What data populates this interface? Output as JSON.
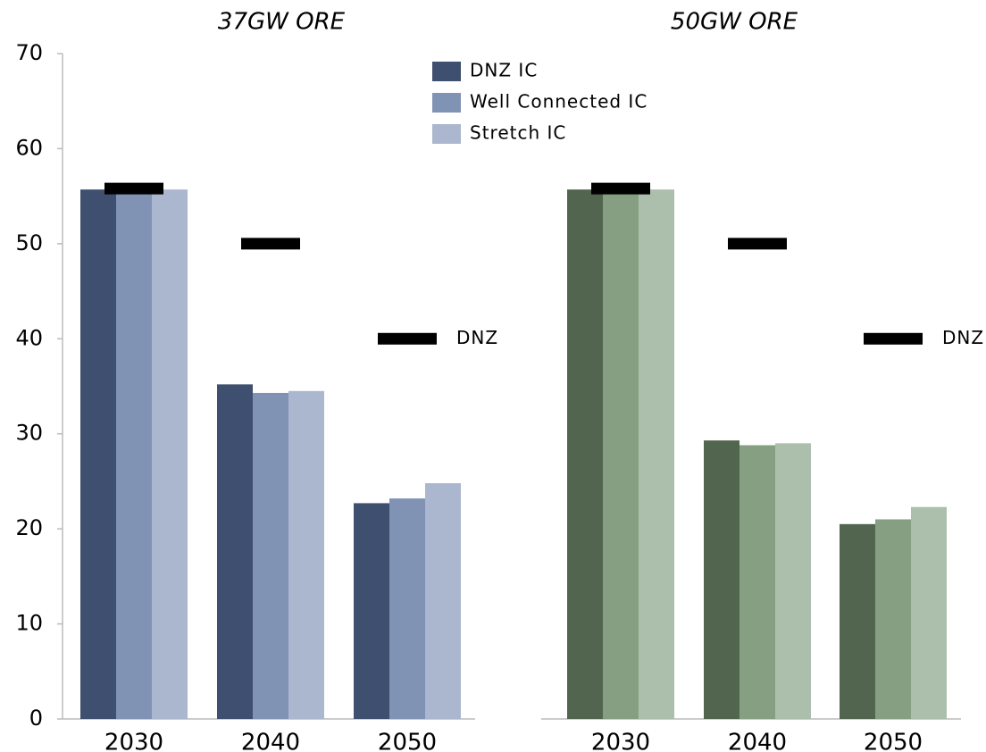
{
  "chart_data": [
    {
      "type": "bar",
      "title": "37GW ORE",
      "categories": [
        "2030",
        "2040",
        "2050"
      ],
      "series": [
        {
          "name": "DNZ IC",
          "color": "#3f4f6f",
          "values": [
            55.7,
            35.2,
            22.7
          ]
        },
        {
          "name": "Well Connected IC",
          "color": "#8093b5",
          "values": [
            55.7,
            34.3,
            23.2
          ]
        },
        {
          "name": "Stretch IC",
          "color": "#abb6cf",
          "values": [
            55.7,
            34.5,
            24.8
          ]
        },
        {
          "name": "DNZ",
          "type": "marker",
          "color": "#000000",
          "values": [
            55.8,
            50,
            40
          ]
        }
      ],
      "ylim": [
        0,
        70
      ],
      "yticks": [
        0,
        10,
        20,
        30,
        40,
        50,
        60,
        70
      ],
      "legend": "top-right"
    },
    {
      "type": "bar",
      "title": "50GW ORE",
      "categories": [
        "2030",
        "2040",
        "2050"
      ],
      "series": [
        {
          "color": "#52654f",
          "values": [
            55.7,
            29.3,
            20.5
          ]
        },
        {
          "color": "#869f82",
          "values": [
            55.7,
            28.8,
            21.0
          ]
        },
        {
          "color": "#acbeac",
          "values": [
            55.7,
            29.0,
            22.3
          ]
        },
        {
          "name": "DNZ",
          "type": "marker",
          "color": "#000000",
          "values": [
            55.8,
            50,
            40
          ]
        }
      ],
      "ylim": [
        0,
        70
      ]
    }
  ]
}
